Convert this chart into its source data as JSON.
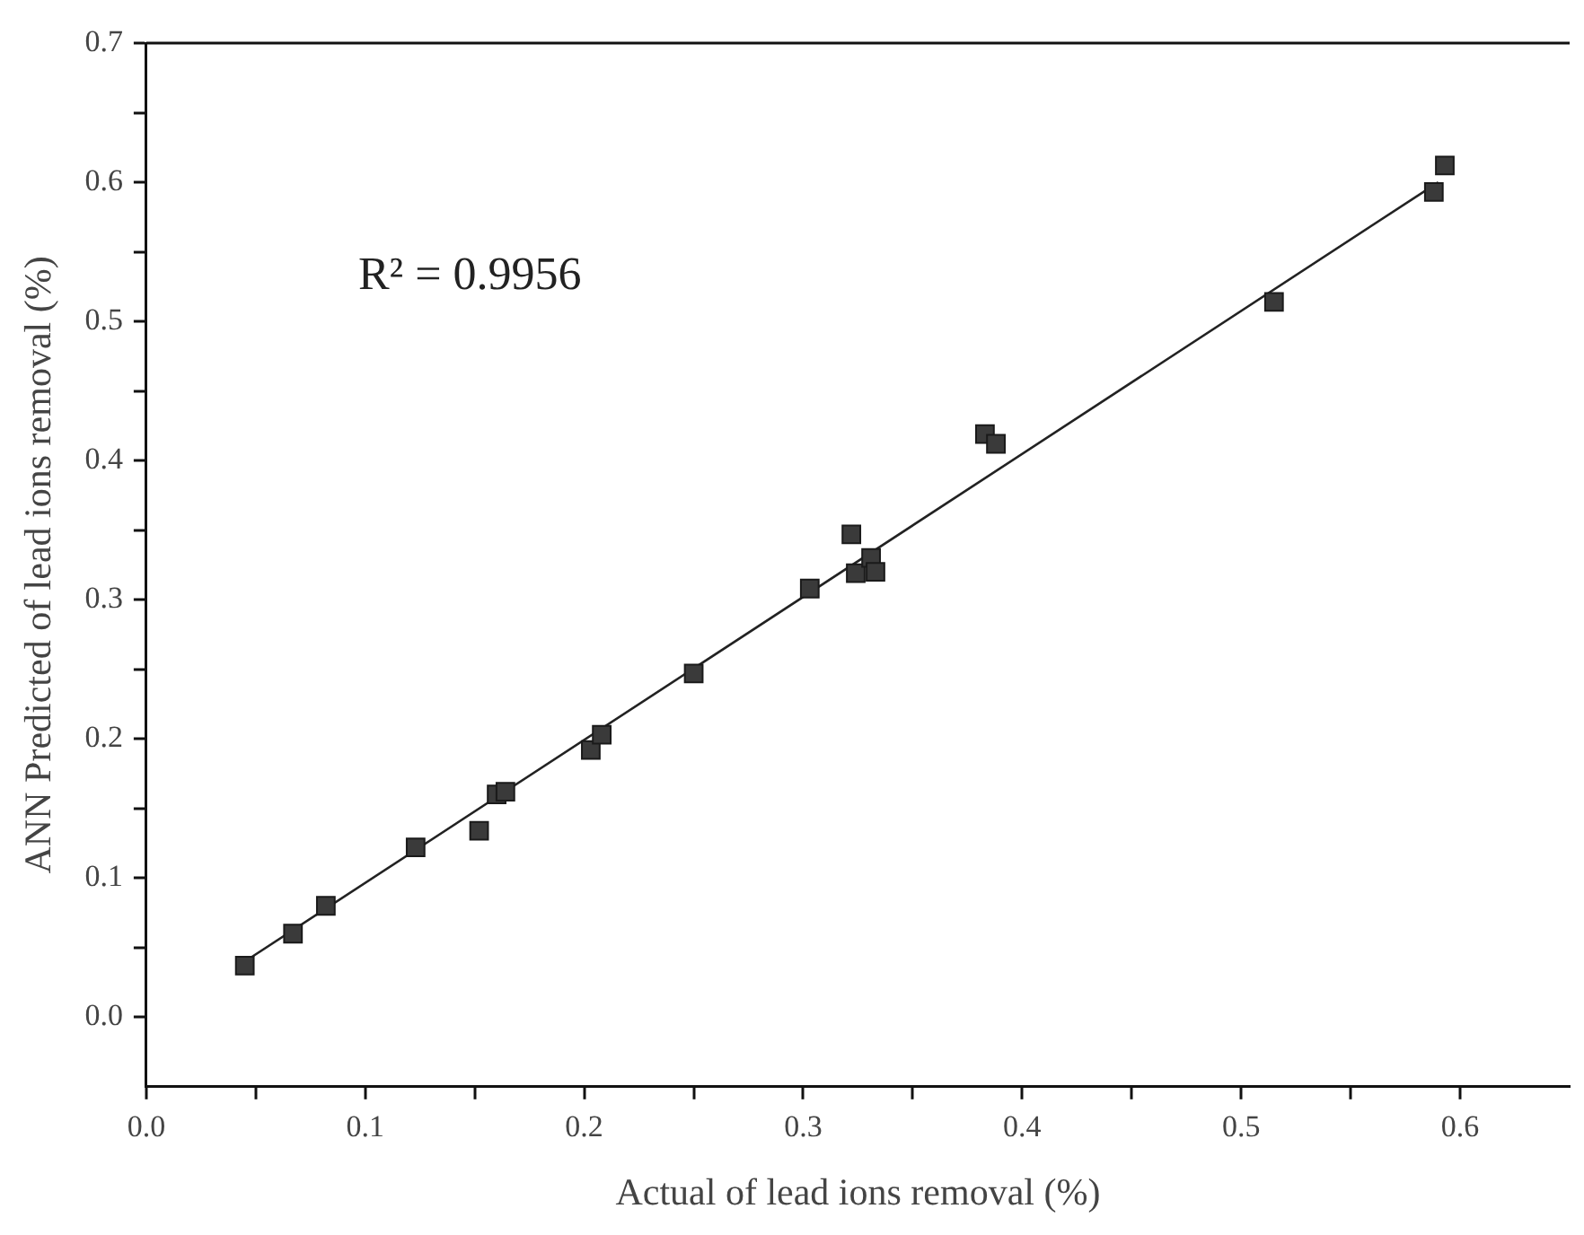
{
  "chart_data": {
    "type": "scatter",
    "xlabel": "Actual of lead ions removal (%)",
    "ylabel": "ANN Predicted of lead ions removal (%)",
    "annotations": [
      "R² = 0.9956"
    ],
    "series": [
      {
        "type": "scatter",
        "color": "#3a3a3a",
        "marker": "square",
        "x": [
          0.045,
          0.067,
          0.082,
          0.123,
          0.152,
          0.16,
          0.164,
          0.203,
          0.208,
          0.25,
          0.303,
          0.322,
          0.324,
          0.331,
          0.333,
          0.383,
          0.388,
          0.515,
          0.588,
          0.593
        ],
        "values": [
          0.037,
          0.06,
          0.08,
          0.122,
          0.134,
          0.16,
          0.162,
          0.192,
          0.203,
          0.247,
          0.308,
          0.347,
          0.319,
          0.33,
          0.32,
          0.419,
          0.412,
          0.514,
          0.593,
          0.612
        ]
      },
      {
        "type": "line",
        "color": "#222222",
        "marker": "none",
        "x": [
          0.045,
          0.59
        ],
        "values": [
          0.04,
          0.6
        ]
      }
    ],
    "xlim": [
      0,
      0.65
    ],
    "ylim": [
      -0.05,
      0.7
    ],
    "xticks": [
      {
        "value": 0,
        "label": "0.0"
      },
      {
        "value": 0.05,
        "label": null
      },
      0.1,
      {
        "value": 0.15,
        "label": null
      },
      0.2,
      {
        "value": 0.25,
        "label": null
      },
      0.3,
      {
        "value": 0.35,
        "label": null
      },
      0.4,
      {
        "value": 0.45,
        "label": null
      },
      0.5,
      {
        "value": 0.55,
        "label": null
      },
      0.6
    ],
    "yticks": [
      {
        "value": 0,
        "label": "0.0"
      },
      {
        "value": 0.05,
        "label": null
      },
      0.1,
      {
        "value": 0.15,
        "label": null
      },
      0.2,
      {
        "value": 0.25,
        "label": null
      },
      0.3,
      {
        "value": 0.35,
        "label": null
      },
      0.4,
      {
        "value": 0.45,
        "label": null
      },
      0.5,
      {
        "value": 0.55,
        "label": null
      },
      0.6,
      {
        "value": 0.65,
        "label": null
      },
      0.7
    ],
    "grid": false,
    "legend": false
  }
}
